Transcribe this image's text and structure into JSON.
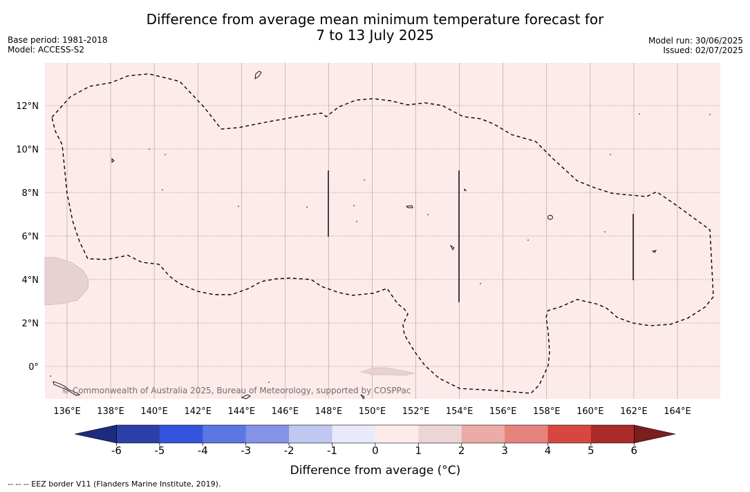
{
  "title": {
    "line1": "Difference from average mean minimum temperature forecast for",
    "line2": "7 to 13 July 2025"
  },
  "meta": {
    "base_period": "Base period: 1981-2018",
    "model": "Model: ACCESS-S2",
    "model_run": "Model run: 30/06/2025",
    "issued": "Issued: 02/07/2025"
  },
  "map": {
    "background_color": "#fcebea",
    "copyright": "© Commonwealth of Australia 2025, Bureau of Meteorology, supported by COSPPac",
    "lon_ticks": [
      "136°E",
      "138°E",
      "140°E",
      "142°E",
      "144°E",
      "146°E",
      "148°E",
      "150°E",
      "152°E",
      "154°E",
      "156°E",
      "158°E",
      "160°E",
      "162°E",
      "164°E"
    ],
    "lat_ticks": [
      "12°N",
      "10°N",
      "8°N",
      "6°N",
      "4°N",
      "2°N",
      "0°"
    ]
  },
  "colorbar": {
    "ticks": [
      "-6",
      "-5",
      "-4",
      "-3",
      "-2",
      "-1",
      "0",
      "1",
      "2",
      "3",
      "4",
      "5",
      "6"
    ],
    "colors": [
      "#2c3fa8",
      "#3354dd",
      "#5b77e2",
      "#8393e6",
      "#c0c7f1",
      "#e8eafa",
      "#fcebea",
      "#edd5d5",
      "#ebaba6",
      "#e5847d",
      "#d8473f",
      "#aa2b27"
    ],
    "under_color": "#1c2b7e",
    "over_color": "#7a1e1e",
    "label": "Difference from average (°C)"
  },
  "footnote": "--  --  -- EEZ border V11 (Flanders Marine Institute, 2019)."
}
